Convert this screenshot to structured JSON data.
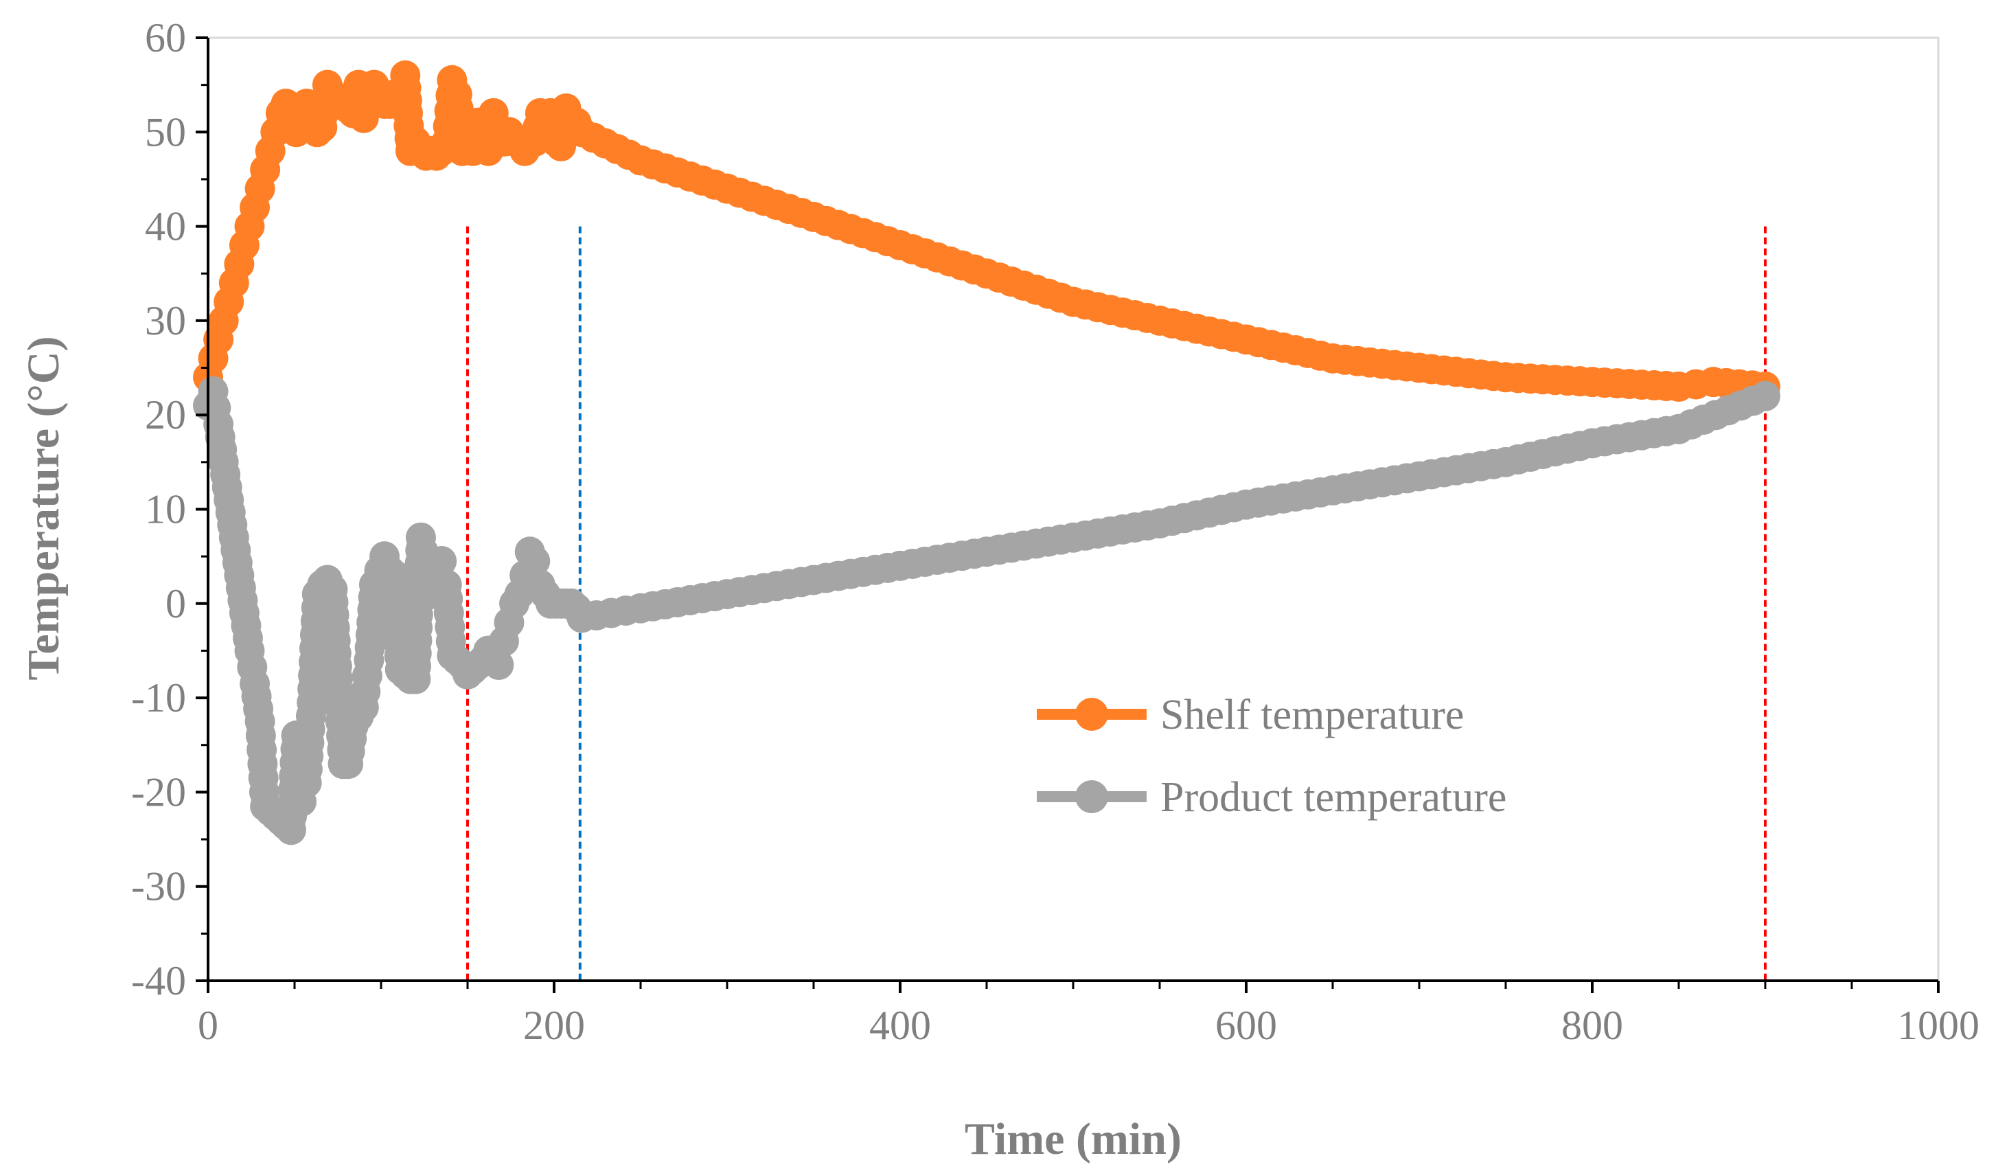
{
  "chart_data": {
    "type": "line",
    "title": "",
    "xlabel": "Time (min)",
    "ylabel": "Temperature (°C)",
    "xlim": [
      0,
      1000
    ],
    "ylim": [
      -40,
      60
    ],
    "x_ticks": [
      0,
      200,
      400,
      600,
      800,
      1000
    ],
    "y_ticks": [
      -40,
      -30,
      -20,
      -10,
      0,
      10,
      20,
      30,
      40,
      50,
      60
    ],
    "x_tick_labels": [
      "0",
      "200",
      "400",
      "600",
      "800",
      "1000"
    ],
    "y_tick_labels": [
      "-40",
      "-30",
      "-20",
      "-10",
      "0",
      "10",
      "20",
      "30",
      "40",
      "50",
      "60"
    ],
    "grid": false,
    "legend_position": "center-right",
    "reference_lines": [
      {
        "x": 150,
        "ymax": 40,
        "color": "#ff0000",
        "style": "dashed"
      },
      {
        "x": 215,
        "ymax": 40,
        "color": "#0070c0",
        "style": "dashed"
      },
      {
        "x": 900,
        "ymax": 40,
        "color": "#ff0000",
        "style": "dashed"
      }
    ],
    "series": [
      {
        "name": "Shelf temperature",
        "color": "#ff7f27",
        "x": [
          0,
          3,
          6,
          9,
          12,
          15,
          18,
          21,
          24,
          27,
          30,
          33,
          36,
          39,
          42,
          45,
          48,
          51,
          54,
          57,
          60,
          63,
          66,
          69,
          72,
          75,
          78,
          81,
          84,
          87,
          90,
          93,
          96,
          99,
          102,
          105,
          108,
          111,
          114,
          117,
          120,
          123,
          126,
          129,
          132,
          135,
          138,
          141,
          144,
          147,
          150,
          153,
          156,
          159,
          162,
          165,
          168,
          171,
          174,
          177,
          180,
          183,
          186,
          189,
          192,
          195,
          198,
          201,
          204,
          207,
          210,
          213,
          216,
          250,
          300,
          350,
          400,
          450,
          500,
          550,
          600,
          650,
          700,
          750,
          800,
          850,
          870,
          900
        ],
        "values": [
          24,
          26,
          28,
          30,
          32,
          34,
          36,
          38,
          40,
          42,
          44,
          46,
          48,
          50,
          52,
          53,
          52,
          50,
          51,
          53,
          51,
          50,
          50.5,
          55,
          54,
          53,
          53.5,
          52.5,
          52,
          55,
          51.5,
          53,
          55,
          54,
          53,
          53,
          54,
          53,
          56,
          48,
          49,
          48,
          47.5,
          48,
          47.5,
          48,
          49,
          55.5,
          54,
          48,
          51,
          48,
          51,
          49,
          48,
          52,
          50,
          49,
          50,
          49,
          49,
          48,
          49,
          49,
          52,
          51,
          52,
          49,
          48.5,
          52.5,
          51,
          51,
          50,
          47,
          44,
          41,
          38,
          35,
          32,
          30,
          28,
          26,
          25,
          24,
          23.5,
          23,
          23.5,
          23
        ]
      },
      {
        "name": "Product temperature",
        "color": "#a5a5a5",
        "x": [
          0,
          3,
          6,
          9,
          12,
          15,
          18,
          21,
          24,
          27,
          30,
          33,
          36,
          39,
          42,
          45,
          48,
          51,
          54,
          57,
          60,
          63,
          66,
          69,
          72,
          75,
          78,
          81,
          84,
          87,
          90,
          93,
          96,
          99,
          102,
          105,
          108,
          111,
          114,
          117,
          120,
          123,
          126,
          129,
          132,
          135,
          138,
          141,
          144,
          147,
          150,
          153,
          156,
          159,
          162,
          165,
          168,
          171,
          174,
          177,
          180,
          183,
          186,
          189,
          192,
          195,
          198,
          201,
          204,
          207,
          210,
          213,
          216,
          250,
          300,
          350,
          400,
          450,
          500,
          550,
          600,
          650,
          700,
          750,
          800,
          850,
          900
        ],
        "values": [
          21,
          22.5,
          19,
          15,
          11,
          7,
          3,
          -1,
          -5,
          -8.5,
          -12.5,
          -21.5,
          -22,
          -22.5,
          -23,
          -23.5,
          -24,
          -14,
          -21,
          -19,
          -10.5,
          1,
          2,
          2.5,
          1.5,
          -8,
          -17,
          -17,
          -13,
          -12,
          -11,
          -6,
          2,
          3.5,
          5,
          3.5,
          3,
          -7,
          -7.5,
          -8,
          -8,
          7,
          4,
          1,
          3,
          4.5,
          2,
          -5.5,
          -6,
          -6.5,
          -7.5,
          -7,
          -6.5,
          -6,
          -5,
          -5,
          -6.5,
          -4,
          -2,
          0,
          1,
          3,
          5.5,
          4.5,
          2,
          1,
          0,
          0,
          0,
          0,
          0,
          -0.5,
          -1.5,
          -0.5,
          1,
          2.5,
          4,
          5.5,
          7,
          8.5,
          10.5,
          12,
          13.5,
          15,
          17,
          18.5,
          22
        ]
      }
    ]
  }
}
